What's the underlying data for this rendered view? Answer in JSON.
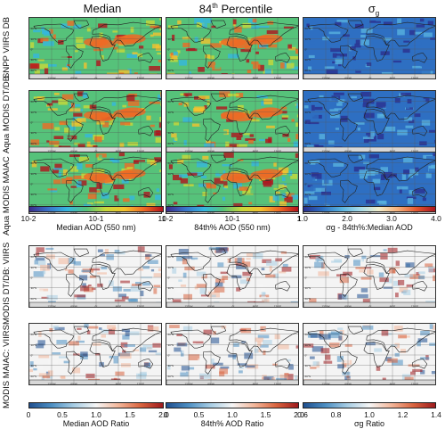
{
  "columns": {
    "median": "Median",
    "p84": "84",
    "p84_sup": "th",
    "p84_rest": " Percentile",
    "sigma": "σ",
    "sigma_sub": "g"
  },
  "rows": [
    "SNPP VIIRS DB",
    "Aqua MODIS DT/DB",
    "Aqua MODIS MAIAC",
    "MODIS DT/DB: VIIRS",
    "MODIS MAIAC: VIIRS"
  ],
  "map_axes": {
    "lat_labels": [
      "90°N",
      "60°N",
      "30°N",
      "0°",
      "30°S",
      "60°S",
      "90°S"
    ],
    "lon_labels": [
      "180°",
      "120°W",
      "60°W",
      "0°",
      "60°E",
      "120°E",
      "180°"
    ]
  },
  "colorbars": {
    "median_aod": {
      "ticks": [
        "10-2",
        "10-1",
        "1"
      ],
      "title": "Median AOD (550 nm)",
      "colors": [
        "#3b2c8c",
        "#3a73c9",
        "#35b6e0",
        "#56c27a",
        "#c8d83a",
        "#f4c22e",
        "#ef6a24",
        "#b3121c"
      ]
    },
    "p84_aod": {
      "ticks": [
        "10-2",
        "10-1",
        "1"
      ],
      "title": "84th% AOD (550 nm)",
      "colors": [
        "#3b2c8c",
        "#3a73c9",
        "#35b6e0",
        "#56c27a",
        "#c8d83a",
        "#f4c22e",
        "#ef6a24",
        "#b3121c"
      ]
    },
    "sigma": {
      "ticks": [
        "1.0",
        "2.0",
        "3.0",
        "4.0"
      ],
      "title": "σg - 84th%:Median AOD",
      "colors": [
        "#2a2f8f",
        "#2e6fc2",
        "#58b1de",
        "#a6dbe9",
        "#f2eecc",
        "#f6b07a",
        "#e4572f",
        "#a8141f"
      ]
    },
    "median_ratio": {
      "ticks": [
        "0",
        "0.5",
        "1.0",
        "1.5",
        "2.0"
      ],
      "title": "Median AOD Ratio",
      "colors": [
        "#1f4f8f",
        "#4d8fc3",
        "#a7cde4",
        "#f6f6f6",
        "#f3b79b",
        "#d9643f",
        "#9e1a1d"
      ]
    },
    "p84_ratio": {
      "ticks": [
        "0",
        "0.5",
        "1.0",
        "1.5",
        "2.0"
      ],
      "title": "84th% AOD Ratio",
      "colors": [
        "#1f4f8f",
        "#4d8fc3",
        "#a7cde4",
        "#f6f6f6",
        "#f3b79b",
        "#d9643f",
        "#9e1a1d"
      ]
    },
    "sigma_ratio": {
      "ticks": [
        "0.6",
        "0.8",
        "1.0",
        "1.2",
        "1.4"
      ],
      "title": "σg Ratio",
      "colors": [
        "#1f4f8f",
        "#4d8fc3",
        "#a7cde4",
        "#f6f6f6",
        "#f3b79b",
        "#d9643f",
        "#9e1a1d"
      ]
    }
  },
  "chart_data": {
    "type": "heatmap",
    "title": "",
    "panels": [
      {
        "row": "SNPP VIIRS DB",
        "column": "Median",
        "colorbar": "median_aod"
      },
      {
        "row": "SNPP VIIRS DB",
        "column": "84th Percentile",
        "colorbar": "p84_aod"
      },
      {
        "row": "SNPP VIIRS DB",
        "column": "σg",
        "colorbar": "sigma"
      },
      {
        "row": "Aqua MODIS DT/DB",
        "column": "Median",
        "colorbar": "median_aod"
      },
      {
        "row": "Aqua MODIS DT/DB",
        "column": "84th Percentile",
        "colorbar": "p84_aod"
      },
      {
        "row": "Aqua MODIS DT/DB",
        "column": "σg",
        "colorbar": "sigma"
      },
      {
        "row": "Aqua MODIS MAIAC",
        "column": "Median",
        "colorbar": "median_aod"
      },
      {
        "row": "Aqua MODIS MAIAC",
        "column": "84th Percentile",
        "colorbar": "p84_aod"
      },
      {
        "row": "Aqua MODIS MAIAC",
        "column": "σg",
        "colorbar": "sigma"
      },
      {
        "row": "MODIS DT/DB: VIIRS",
        "column": "Median",
        "colorbar": "median_ratio"
      },
      {
        "row": "MODIS DT/DB: VIIRS",
        "column": "84th Percentile",
        "colorbar": "p84_ratio"
      },
      {
        "row": "MODIS DT/DB: VIIRS",
        "column": "σg",
        "colorbar": "sigma_ratio"
      },
      {
        "row": "MODIS MAIAC: VIIRS",
        "column": "Median",
        "colorbar": "median_ratio"
      },
      {
        "row": "MODIS MAIAC: VIIRS",
        "column": "84th Percentile",
        "colorbar": "p84_ratio"
      },
      {
        "row": "MODIS MAIAC: VIIRS",
        "column": "σg",
        "colorbar": "sigma_ratio"
      }
    ],
    "colorbar_ranges": {
      "median_aod": [
        0.01,
        1
      ],
      "p84_aod": [
        0.01,
        1
      ],
      "sigma": [
        1.0,
        4.0
      ],
      "median_ratio": [
        0,
        2.0
      ],
      "p84_ratio": [
        0,
        2.0
      ],
      "sigma_ratio": [
        0.6,
        1.4
      ]
    },
    "colorbar_scales": {
      "median_aod": "log",
      "p84_aod": "log",
      "sigma": "linear",
      "median_ratio": "linear",
      "p84_ratio": "linear",
      "sigma_ratio": "linear"
    }
  }
}
